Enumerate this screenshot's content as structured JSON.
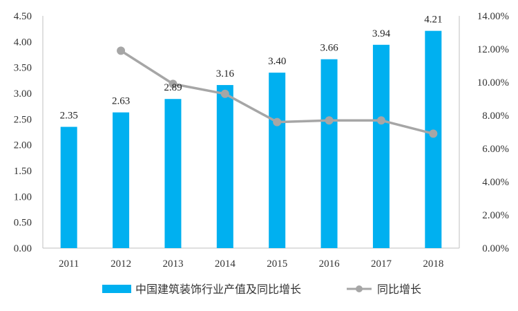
{
  "chart_data": {
    "type": "bar",
    "categories": [
      "2011",
      "2012",
      "2013",
      "2014",
      "2015",
      "2016",
      "2017",
      "2018"
    ],
    "series": [
      {
        "name": "中国建筑装饰行业产值及同比增长",
        "type": "bar",
        "axis": "left",
        "values": [
          2.35,
          2.63,
          2.89,
          3.16,
          3.4,
          3.66,
          3.94,
          4.21
        ],
        "data_labels": [
          "2.35",
          "2.63",
          "2.89",
          "3.16",
          "3.40",
          "3.66",
          "3.94",
          "4.21"
        ],
        "color": "#00b0f0"
      },
      {
        "name": "同比增长",
        "type": "line",
        "axis": "right",
        "values": [
          null,
          0.119,
          0.099,
          0.093,
          0.076,
          0.077,
          0.077,
          0.069
        ],
        "color": "#a6a6a6"
      }
    ],
    "y_left": {
      "ylim": [
        0,
        4.5
      ],
      "ticks": [
        "0.00",
        "0.50",
        "1.00",
        "1.50",
        "2.00",
        "2.50",
        "3.00",
        "3.50",
        "4.00",
        "4.50"
      ]
    },
    "y_right": {
      "ylim": [
        0,
        0.14
      ],
      "ticks": [
        "0.00%",
        "2.00%",
        "4.00%",
        "6.00%",
        "8.00%",
        "10.00%",
        "12.00%",
        "14.00%"
      ]
    },
    "grid": false,
    "legend_position": "bottom",
    "title": "",
    "xlabel": "",
    "ylabel": ""
  }
}
